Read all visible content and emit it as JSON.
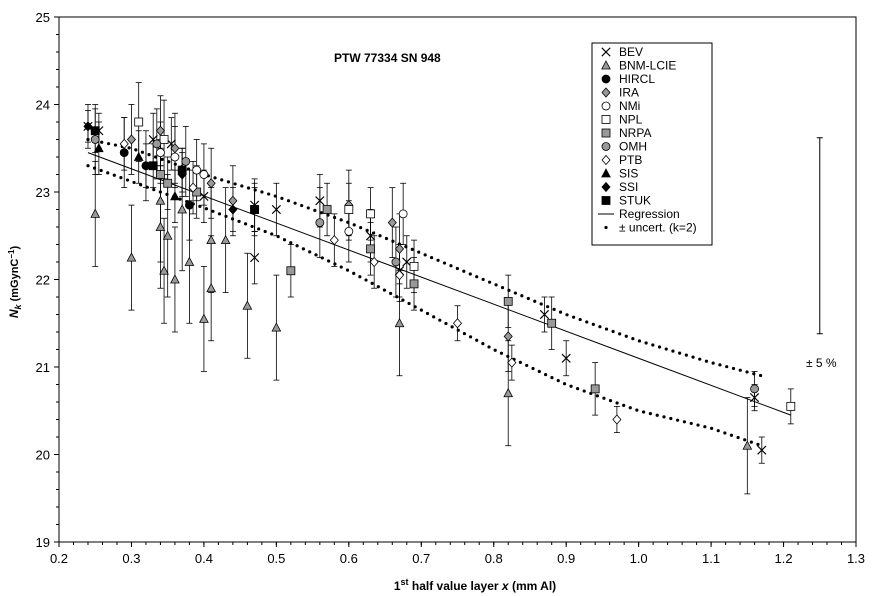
{
  "chart_data": {
    "type": "scatter",
    "title": "PTW 77334 SN 948",
    "xlabel": {
      "pre": "1",
      "sup": "st",
      "post": " half value layer ",
      "var": "x",
      "unit": " (mm Al)"
    },
    "ylabel": {
      "var": "N",
      "sub": "k",
      "unit_pre": " (mGynC",
      "unit_sup": "−1",
      "unit_post": ")"
    },
    "xlim": [
      0.2,
      1.3
    ],
    "ylim": [
      19,
      25
    ],
    "x_ticks": [
      "0.2",
      "0.3",
      "0.4",
      "0.5",
      "0.6",
      "0.7",
      "0.8",
      "0.9",
      "1.0",
      "1.1",
      "1.2",
      "1.3"
    ],
    "y_ticks": [
      "19",
      "20",
      "21",
      "22",
      "23",
      "24",
      "25"
    ],
    "grid": false,
    "legend_position": "top-right",
    "annotation": "± 5 %",
    "annotation_bar": {
      "x": 1.25,
      "low": 21.38,
      "high": 23.62,
      "mid": 22.5
    },
    "series": [
      {
        "name": "BEV",
        "marker": "x",
        "points": [
          [
            0.24,
            23.75,
            0.18
          ],
          [
            0.255,
            23.7,
            0.2
          ],
          [
            0.33,
            23.6,
            0.3
          ],
          [
            0.355,
            23.55,
            0.3
          ],
          [
            0.4,
            22.95,
            0.3
          ],
          [
            0.47,
            22.85,
            0.3
          ],
          [
            0.47,
            22.25,
            0.3
          ],
          [
            0.5,
            22.8,
            0.3
          ],
          [
            0.56,
            22.9,
            0.3
          ],
          [
            0.63,
            22.5,
            0.3
          ],
          [
            0.67,
            22.1,
            0.3
          ],
          [
            0.68,
            22.2,
            0.3
          ],
          [
            0.87,
            21.6,
            0.2
          ],
          [
            0.9,
            21.1,
            0.2
          ],
          [
            1.16,
            20.65,
            0.15
          ],
          [
            1.17,
            20.05,
            0.15
          ]
        ]
      },
      {
        "name": "BNM-LCIE",
        "marker": "triangle-gray",
        "points": [
          [
            0.25,
            22.75,
            0.6
          ],
          [
            0.3,
            22.25,
            0.6
          ],
          [
            0.34,
            22.9,
            0.7
          ],
          [
            0.34,
            22.6,
            0.7
          ],
          [
            0.345,
            22.1,
            0.6
          ],
          [
            0.35,
            22.5,
            0.7
          ],
          [
            0.36,
            22.0,
            0.6
          ],
          [
            0.37,
            22.8,
            0.7
          ],
          [
            0.38,
            22.2,
            0.7
          ],
          [
            0.4,
            21.55,
            0.6
          ],
          [
            0.41,
            22.45,
            0.6
          ],
          [
            0.41,
            21.9,
            0.6
          ],
          [
            0.43,
            22.45,
            0.6
          ],
          [
            0.46,
            21.7,
            0.6
          ],
          [
            0.5,
            21.45,
            0.6
          ],
          [
            0.67,
            21.5,
            0.6
          ],
          [
            0.82,
            20.7,
            0.6
          ],
          [
            1.15,
            20.1,
            0.55
          ]
        ]
      },
      {
        "name": "HIRCL",
        "marker": "circle-black",
        "points": [
          [
            0.29,
            23.45,
            0.4
          ],
          [
            0.32,
            23.3,
            0.4
          ],
          [
            0.38,
            22.85,
            0.4
          ]
        ]
      },
      {
        "name": "IRA",
        "marker": "diamond-gray",
        "points": [
          [
            0.3,
            23.6,
            0.4
          ],
          [
            0.34,
            23.7,
            0.4
          ],
          [
            0.36,
            23.5,
            0.4
          ],
          [
            0.41,
            23.1,
            0.4
          ],
          [
            0.44,
            22.9,
            0.4
          ],
          [
            0.6,
            22.85,
            0.4
          ],
          [
            0.66,
            22.65,
            0.4
          ],
          [
            0.67,
            22.35,
            0.4
          ],
          [
            0.82,
            21.35,
            0.4
          ]
        ]
      },
      {
        "name": "NMi",
        "marker": "circle-open",
        "points": [
          [
            0.34,
            23.45,
            0.35
          ],
          [
            0.36,
            23.4,
            0.35
          ],
          [
            0.39,
            23.25,
            0.35
          ],
          [
            0.4,
            23.2,
            0.35
          ],
          [
            0.6,
            22.55,
            0.35
          ],
          [
            0.675,
            22.75,
            0.35
          ]
        ]
      },
      {
        "name": "NPL",
        "marker": "square-open",
        "points": [
          [
            0.31,
            23.8,
            0.45
          ],
          [
            0.345,
            23.6,
            0.45
          ],
          [
            0.6,
            22.8,
            0.3
          ],
          [
            0.63,
            22.75,
            0.3
          ],
          [
            0.69,
            22.15,
            0.3
          ],
          [
            1.21,
            20.55,
            0.2
          ]
        ]
      },
      {
        "name": "NRPA",
        "marker": "square-gray",
        "points": [
          [
            0.34,
            23.2,
            0.3
          ],
          [
            0.35,
            23.1,
            0.3
          ],
          [
            0.39,
            23.0,
            0.3
          ],
          [
            0.47,
            22.8,
            0.3
          ],
          [
            0.52,
            22.1,
            0.3
          ],
          [
            0.57,
            22.8,
            0.3
          ],
          [
            0.63,
            22.35,
            0.3
          ],
          [
            0.69,
            21.95,
            0.3
          ],
          [
            0.82,
            21.75,
            0.3
          ],
          [
            0.88,
            21.5,
            0.3
          ],
          [
            0.94,
            20.75,
            0.3
          ]
        ]
      },
      {
        "name": "OMH",
        "marker": "circle-gray",
        "points": [
          [
            0.25,
            23.6,
            0.4
          ],
          [
            0.335,
            23.55,
            0.4
          ],
          [
            0.375,
            23.35,
            0.4
          ],
          [
            0.56,
            22.65,
            0.4
          ],
          [
            0.665,
            22.2,
            0.4
          ],
          [
            1.16,
            20.75,
            0.2
          ]
        ]
      },
      {
        "name": "PTB",
        "marker": "diamond-open",
        "points": [
          [
            0.29,
            23.55,
            0.3
          ],
          [
            0.385,
            23.05,
            0.3
          ],
          [
            0.58,
            22.45,
            0.3
          ],
          [
            0.635,
            22.2,
            0.3
          ],
          [
            0.67,
            22.05,
            0.3
          ],
          [
            0.75,
            21.5,
            0.2
          ],
          [
            0.825,
            21.05,
            0.2
          ],
          [
            0.97,
            20.4,
            0.15
          ]
        ]
      },
      {
        "name": "SIS",
        "marker": "triangle-black",
        "points": [
          [
            0.255,
            23.5,
            0.3
          ],
          [
            0.31,
            23.4,
            0.3
          ],
          [
            0.36,
            22.95,
            0.3
          ]
        ]
      },
      {
        "name": "SSI",
        "marker": "diamond-black",
        "points": [
          [
            0.24,
            23.75,
            0.25
          ],
          [
            0.32,
            23.3,
            0.25
          ],
          [
            0.37,
            23.2,
            0.25
          ],
          [
            0.44,
            22.8,
            0.25
          ]
        ]
      },
      {
        "name": "STUK",
        "marker": "square-black",
        "points": [
          [
            0.25,
            23.7,
            0.25
          ],
          [
            0.33,
            23.3,
            0.25
          ],
          [
            0.37,
            23.25,
            0.25
          ],
          [
            0.47,
            22.8,
            0.25
          ]
        ]
      }
    ],
    "regression": {
      "name": "Regression",
      "x": [
        0.24,
        1.21
      ],
      "y": [
        23.45,
        20.45
      ]
    },
    "uncertainty": {
      "name": "± uncert. (k=2)",
      "upper": {
        "x": [
          0.24,
          0.3,
          0.4,
          0.5,
          0.6,
          0.7,
          0.8,
          0.9,
          1.0,
          1.1,
          1.17
        ],
        "y": [
          23.6,
          23.5,
          23.2,
          22.95,
          22.65,
          22.3,
          21.95,
          21.6,
          21.3,
          21.05,
          20.9
        ]
      },
      "lower": {
        "x": [
          0.24,
          0.3,
          0.4,
          0.5,
          0.6,
          0.7,
          0.8,
          0.9,
          1.0,
          1.1,
          1.17
        ],
        "y": [
          23.3,
          23.12,
          22.82,
          22.5,
          22.1,
          21.65,
          21.2,
          20.8,
          20.5,
          20.3,
          20.1
        ]
      }
    }
  }
}
